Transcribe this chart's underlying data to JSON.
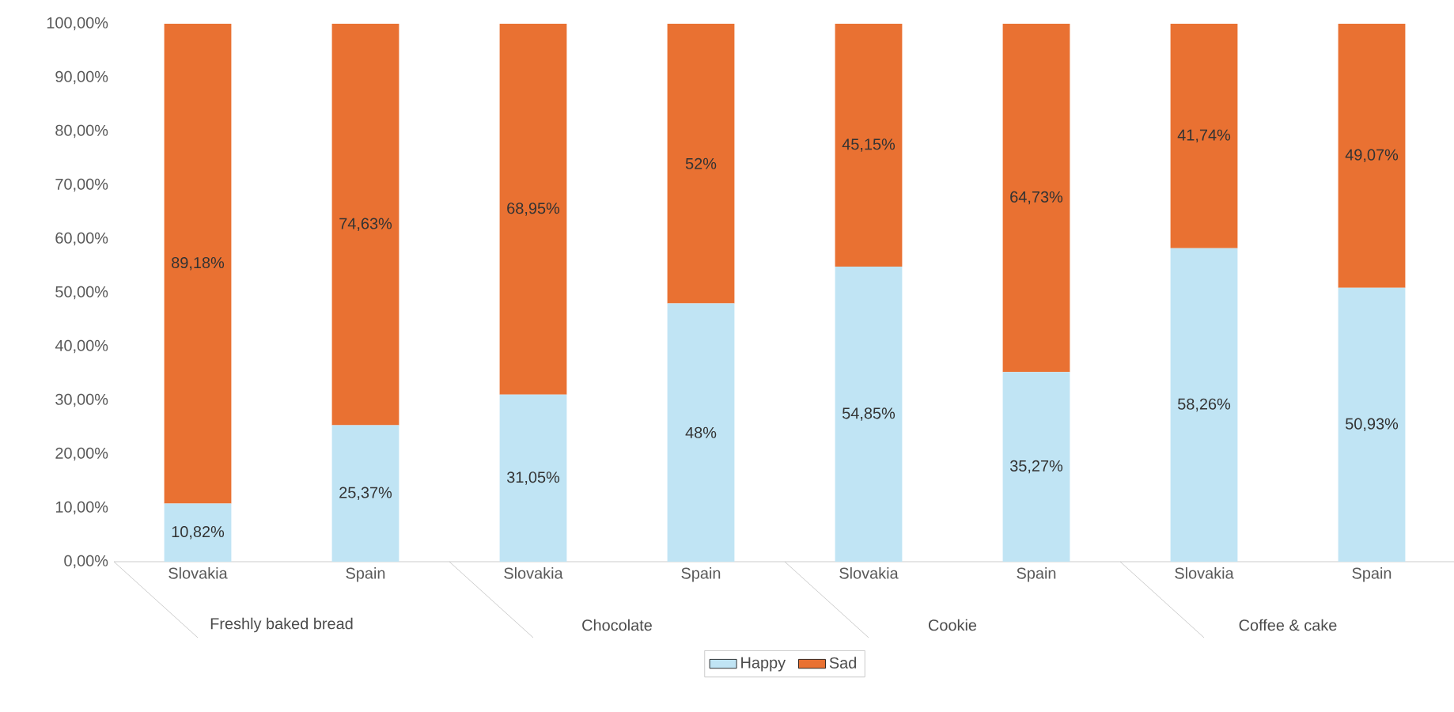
{
  "chart_data": {
    "type": "bar",
    "stacked": true,
    "categories": [
      "Slovakia",
      "Spain",
      "Slovakia",
      "Spain",
      "Slovakia",
      "Spain",
      "Slovakia",
      "Spain"
    ],
    "annotations": [
      "Freshly baked bread",
      "Chocolate",
      "Cookie",
      "Coffee & cake"
    ],
    "series": [
      {
        "name": "Happy",
        "color": "#c0e4f4",
        "values": [
          10.82,
          25.37,
          31.05,
          48,
          54.85,
          35.27,
          58.26,
          50.93
        ],
        "value_labels": [
          "10,82%",
          "25,37%",
          "31,05%",
          "48%",
          "54,85%",
          "35,27%",
          "58,26%",
          "50,93%"
        ]
      },
      {
        "name": "Sad",
        "color": "#e97132",
        "values": [
          89.18,
          74.63,
          68.95,
          52,
          45.15,
          64.73,
          41.74,
          49.07
        ],
        "value_labels": [
          "89,18%",
          "74,63%",
          "68,95%",
          "52%",
          "45,15%",
          "64,73%",
          "41,74%",
          "49,07%"
        ]
      }
    ],
    "ylim": [
      0,
      100
    ],
    "yticks": [
      {
        "value": 0,
        "label": "0,00%"
      },
      {
        "value": 10,
        "label": "10,00%"
      },
      {
        "value": 20,
        "label": "20,00%"
      },
      {
        "value": 30,
        "label": "30,00%"
      },
      {
        "value": 40,
        "label": "40,00%"
      },
      {
        "value": 50,
        "label": "50,00%"
      },
      {
        "value": 60,
        "label": "60,00%"
      },
      {
        "value": 70,
        "label": "70,00%"
      },
      {
        "value": 80,
        "label": "80,00%"
      },
      {
        "value": 90,
        "label": "90,00%"
      },
      {
        "value": 100,
        "label": "100,00%"
      }
    ],
    "legend": "bottom"
  }
}
